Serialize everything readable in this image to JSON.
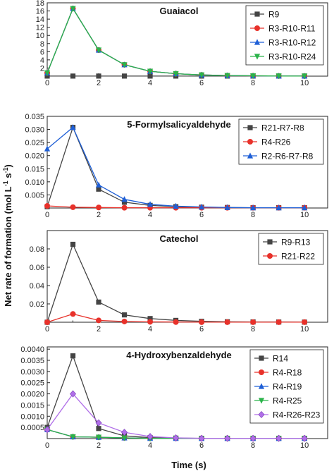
{
  "figure": {
    "ylabel_main": "Net rate of formation (mol L",
    "ylabel_sup1": "-1",
    "ylabel_mid": " s",
    "ylabel_sup2": "-1",
    "ylabel_end": ")",
    "xlabel": "Time (s)"
  },
  "chart_data": [
    {
      "type": "line",
      "title": "Guaiacol",
      "x": [
        0,
        1,
        2,
        3,
        4,
        5,
        6,
        7,
        8,
        9,
        10
      ],
      "xlim": [
        0,
        10.9
      ],
      "xticks": [
        0,
        2,
        4,
        6,
        8,
        10
      ],
      "ylim": [
        0,
        18
      ],
      "yticks": [
        2,
        4,
        6,
        8,
        10,
        12,
        14,
        16,
        18
      ],
      "ytick_labels": [
        "2",
        "4",
        "6",
        "8",
        "10",
        "12",
        "14",
        "16",
        "18"
      ],
      "legend": "top-right",
      "series": [
        {
          "name": "R9",
          "color": "#444444",
          "marker": "square",
          "values": [
            0.02,
            0.02,
            0.02,
            0.02,
            0.02,
            0.02,
            0.02,
            0.02,
            0.02,
            0.02,
            0.02
          ]
        },
        {
          "name": "R3-R10-R11",
          "color": "#e8312a",
          "marker": "circle",
          "values": [
            0.8,
            16.6,
            6.4,
            2.8,
            1.2,
            0.6,
            0.3,
            0.15,
            0.08,
            0.04,
            0.02
          ]
        },
        {
          "name": "R3-R10-R12",
          "color": "#1f5fd6",
          "marker": "triangle-up",
          "values": [
            0.8,
            16.6,
            6.4,
            2.8,
            1.2,
            0.6,
            0.3,
            0.15,
            0.08,
            0.04,
            0.02
          ]
        },
        {
          "name": "R3-R10-R24",
          "color": "#2bb34a",
          "marker": "triangle-down",
          "values": [
            0.8,
            16.6,
            6.4,
            2.8,
            1.2,
            0.6,
            0.3,
            0.15,
            0.08,
            0.04,
            0.02
          ]
        }
      ]
    },
    {
      "type": "line",
      "title": "5-Formylsalicyaldehyde",
      "x": [
        0,
        1,
        2,
        3,
        4,
        5,
        6,
        7,
        8,
        9,
        10
      ],
      "xlim": [
        0,
        10.9
      ],
      "xticks": [
        0,
        2,
        4,
        6,
        8,
        10
      ],
      "ylim": [
        0,
        0.035
      ],
      "yticks": [
        0.005,
        0.01,
        0.015,
        0.02,
        0.025,
        0.03,
        0.035
      ],
      "ytick_labels": [
        "0.005",
        "0.010",
        "0.015",
        "0.020",
        "0.025",
        "0.030",
        "0.035"
      ],
      "legend": "top-right",
      "series": [
        {
          "name": "R21-R7-R8",
          "color": "#444444",
          "marker": "square",
          "values": [
            0.0005,
            0.0308,
            0.0072,
            0.0022,
            0.001,
            0.0005,
            0.0003,
            0.0002,
            0.0001,
            0.0001,
            0.0001
          ]
        },
        {
          "name": "R4-R26",
          "color": "#e8312a",
          "marker": "circle",
          "values": [
            0.0008,
            0.0003,
            0.0002,
            0.0001,
            0.0001,
            0.0001,
            0.0001,
            0.0001,
            0.0001,
            0.0001,
            0.0001
          ]
        },
        {
          "name": "R2-R6-R7-R8",
          "color": "#1f5fd6",
          "marker": "triangle-up",
          "values": [
            0.0226,
            0.0308,
            0.0088,
            0.0033,
            0.0014,
            0.0007,
            0.0004,
            0.0002,
            0.0001,
            0.0001,
            0.0001
          ]
        }
      ]
    },
    {
      "type": "line",
      "title": "Catechol",
      "x": [
        0,
        1,
        2,
        3,
        4,
        5,
        6,
        7,
        8,
        9,
        10
      ],
      "xlim": [
        0,
        10.9
      ],
      "xticks": [
        0,
        2,
        4,
        6,
        8,
        10
      ],
      "ylim": [
        0,
        0.1
      ],
      "yticks": [
        0.02,
        0.04,
        0.06,
        0.08
      ],
      "ytick_labels": [
        "0.02",
        "0.04",
        "0.06",
        "0.08"
      ],
      "legend": "top-right",
      "series": [
        {
          "name": "R9-R13",
          "color": "#444444",
          "marker": "square",
          "values": [
            0.0,
            0.085,
            0.022,
            0.008,
            0.004,
            0.002,
            0.001,
            0.0005,
            0.0003,
            0.0002,
            0.0001
          ]
        },
        {
          "name": "R21-R22",
          "color": "#e8312a",
          "marker": "circle",
          "values": [
            0.0,
            0.009,
            0.002,
            0.0008,
            0.0004,
            0.0002,
            0.0001,
            0.0001,
            0.0001,
            0.0001,
            0.0001
          ]
        }
      ]
    },
    {
      "type": "line",
      "title": "4-Hydroxybenzaldehyde",
      "x": [
        0,
        1,
        2,
        3,
        4,
        5,
        6,
        7,
        8,
        9,
        10
      ],
      "xlim": [
        0,
        10.9
      ],
      "xticks": [
        0,
        2,
        4,
        6,
        8,
        10
      ],
      "ylim": [
        0,
        0.0041
      ],
      "yticks": [
        0.0005,
        0.001,
        0.0015,
        0.002,
        0.0025,
        0.003,
        0.0035,
        0.004
      ],
      "ytick_labels": [
        "0.0005",
        "0.0010",
        "0.0015",
        "0.0020",
        "0.0025",
        "0.0030",
        "0.0035",
        "0.0040"
      ],
      "legend": "top-right",
      "series": [
        {
          "name": "R14",
          "color": "#444444",
          "marker": "square",
          "values": [
            0.0005,
            0.0037,
            0.00045,
            0.00012,
            4e-05,
            2e-05,
            1e-05,
            1e-05,
            1e-05,
            1e-05,
            1e-05
          ]
        },
        {
          "name": "R4-R18",
          "color": "#e8312a",
          "marker": "circle",
          "values": [
            0.0004,
            8e-05,
            6e-05,
            3e-05,
            1e-05,
            1e-05,
            1e-05,
            1e-05,
            1e-05,
            1e-05,
            1e-05
          ]
        },
        {
          "name": "R4-R19",
          "color": "#1f5fd6",
          "marker": "triangle-up",
          "values": [
            0.0004,
            8e-05,
            6e-05,
            3e-05,
            1e-05,
            1e-05,
            1e-05,
            1e-05,
            1e-05,
            1e-05,
            1e-05
          ]
        },
        {
          "name": "R4-R25",
          "color": "#2bb34a",
          "marker": "triangle-down",
          "values": [
            0.0004,
            8e-05,
            6e-05,
            3e-05,
            1e-05,
            1e-05,
            1e-05,
            1e-05,
            1e-05,
            1e-05,
            1e-05
          ]
        },
        {
          "name": "R4-R26-R23",
          "color": "#b06ee8",
          "marker": "diamond",
          "values": [
            0.0004,
            0.002,
            0.0007,
            0.00028,
            9e-05,
            3e-05,
            1e-05,
            1e-05,
            1e-05,
            1e-05,
            1e-05
          ]
        }
      ]
    }
  ]
}
